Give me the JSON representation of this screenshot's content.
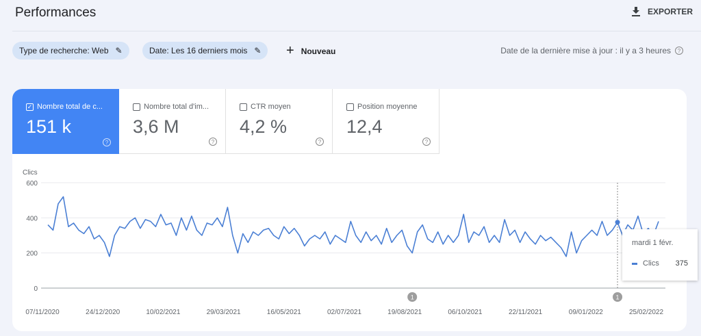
{
  "header": {
    "title": "Performances",
    "export_label": "EXPORTER"
  },
  "filters": {
    "search_type": "Type de recherche: Web",
    "date": "Date: Les 16 derniers mois",
    "new_label": "Nouveau"
  },
  "last_update": "Date de la dernière mise à jour : il y a 3 heures",
  "metrics": [
    {
      "label": "Nombre total de c...",
      "value": "151 k",
      "checked": true
    },
    {
      "label": "Nombre total d'im...",
      "value": "3,6 M",
      "checked": false
    },
    {
      "label": "CTR moyen",
      "value": "4,2 %",
      "checked": false
    },
    {
      "label": "Position moyenne",
      "value": "12,4",
      "checked": false
    }
  ],
  "tooltip": {
    "date": "mardi 1 févr.",
    "series": "Clics",
    "value": "375"
  },
  "colors": {
    "accent": "#4285f4",
    "line": "#4a7fd4"
  },
  "chart_data": {
    "type": "line",
    "ylabel": "Clics",
    "ylim": [
      0,
      600
    ],
    "yticks": [
      "0",
      "200",
      "400",
      "600"
    ],
    "xticks": [
      "07/11/2020",
      "24/12/2020",
      "10/02/2021",
      "29/03/2021",
      "16/05/2021",
      "02/07/2021",
      "19/08/2021",
      "06/10/2021",
      "22/11/2021",
      "09/01/2022",
      "25/02/2022"
    ],
    "annotations": [
      {
        "label": "1",
        "index": 71
      },
      {
        "label": "1",
        "index": 111
      }
    ],
    "highlight_index": 111,
    "series": [
      {
        "name": "Clics",
        "values": [
          360,
          330,
          480,
          520,
          350,
          370,
          330,
          310,
          350,
          280,
          300,
          260,
          180,
          300,
          350,
          340,
          380,
          400,
          340,
          390,
          380,
          350,
          420,
          360,
          370,
          300,
          400,
          330,
          410,
          330,
          300,
          370,
          360,
          400,
          350,
          460,
          300,
          200,
          310,
          260,
          320,
          300,
          330,
          340,
          300,
          280,
          350,
          310,
          340,
          300,
          240,
          280,
          300,
          280,
          320,
          250,
          300,
          280,
          260,
          380,
          300,
          260,
          320,
          270,
          300,
          250,
          340,
          260,
          300,
          330,
          240,
          200,
          320,
          360,
          280,
          260,
          320,
          250,
          300,
          260,
          300,
          420,
          260,
          320,
          300,
          350,
          260,
          300,
          260,
          390,
          300,
          330,
          260,
          320,
          280,
          250,
          300,
          270,
          290,
          260,
          230,
          180,
          320,
          200,
          270,
          300,
          330,
          300,
          380,
          300,
          330,
          375,
          300,
          360,
          330,
          410,
          310,
          340,
          300,
          380
        ]
      }
    ]
  }
}
